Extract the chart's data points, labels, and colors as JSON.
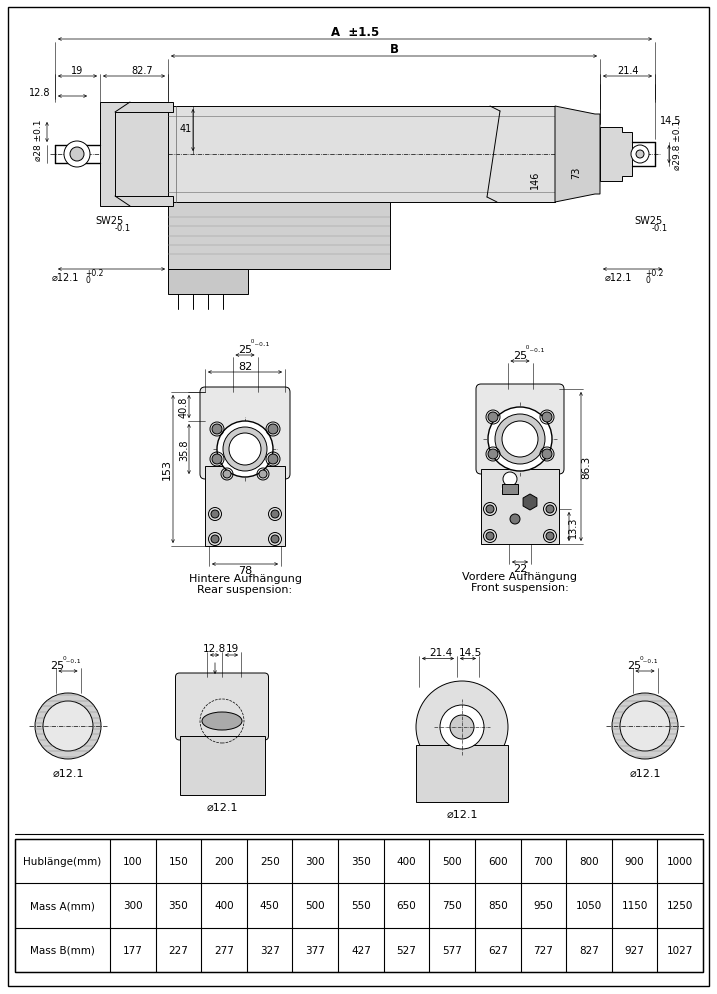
{
  "bg_color": "#ffffff",
  "table": {
    "headers": [
      "Hublänge(mm)",
      "100",
      "150",
      "200",
      "250",
      "300",
      "350",
      "400",
      "500",
      "600",
      "700",
      "800",
      "900",
      "1000"
    ],
    "row_a": [
      "Mass A(mm)",
      "300",
      "350",
      "400",
      "450",
      "500",
      "550",
      "650",
      "750",
      "850",
      "950",
      "1050",
      "1150",
      "1250"
    ],
    "row_b": [
      "Mass B(mm)",
      "177",
      "227",
      "277",
      "327",
      "377",
      "427",
      "527",
      "577",
      "627",
      "727",
      "827",
      "927",
      "1027"
    ]
  }
}
